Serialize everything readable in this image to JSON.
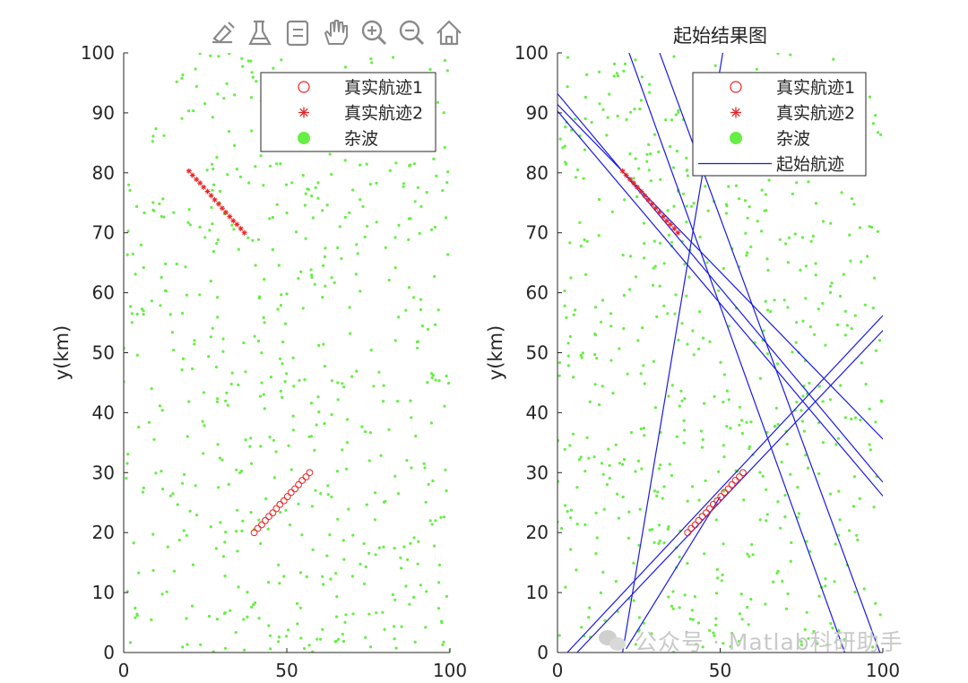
{
  "toolbar": {
    "icons": [
      "edit-arrow-icon",
      "brush-icon",
      "data-tips-icon",
      "pan-hand-icon",
      "zoom-in-icon",
      "zoom-out-icon",
      "home-icon"
    ]
  },
  "watermark": {
    "text": "公众号 · Matlab科研助手"
  },
  "colors": {
    "clutter": "#66ee44",
    "track": "#ee2222",
    "line": "#1a1ae6",
    "axes": "#262626"
  },
  "chart_data": [
    {
      "type": "scatter",
      "title": "",
      "xlabel": "",
      "ylabel": "y(km)",
      "xlim": [
        0,
        100
      ],
      "ylim": [
        0,
        100
      ],
      "xticks": [
        "0",
        "50",
        "100"
      ],
      "yticks": [
        "0",
        "10",
        "20",
        "30",
        "40",
        "50",
        "60",
        "70",
        "80",
        "90",
        "100"
      ],
      "grid": false,
      "legend_position": "top-right",
      "series": [
        {
          "name": "真实航迹1",
          "marker": "circle",
          "x": [
            40,
            41.1,
            42.3,
            43.4,
            44.5,
            45.7,
            46.8,
            47.9,
            49.1,
            50.2,
            51.3,
            52.5,
            53.6,
            54.7,
            55.9,
            57
          ],
          "y": [
            20,
            20.7,
            21.3,
            22,
            22.7,
            23.3,
            24,
            24.7,
            25.3,
            26,
            26.7,
            27.3,
            28,
            28.7,
            29.3,
            30
          ]
        },
        {
          "name": "真实航迹2",
          "marker": "star",
          "x": [
            20,
            21.1,
            22.3,
            23.4,
            24.5,
            25.7,
            26.8,
            27.9,
            29.1,
            30.2,
            31.3,
            32.5,
            33.6,
            34.7,
            35.9,
            37
          ],
          "y": [
            80.3,
            79.6,
            78.9,
            78.3,
            77.6,
            76.9,
            76.2,
            75.5,
            74.8,
            74.1,
            73.4,
            72.7,
            72,
            71.4,
            70.7,
            70
          ]
        },
        {
          "name": "杂波",
          "marker": "dot",
          "count": 600
        }
      ]
    },
    {
      "type": "scatter",
      "title": "起始结果图",
      "xlabel": "",
      "ylabel": "y(km)",
      "xlim": [
        0,
        100
      ],
      "ylim": [
        0,
        100
      ],
      "xticks": [
        "0",
        "50",
        "100"
      ],
      "yticks": [
        "0",
        "10",
        "20",
        "30",
        "40",
        "50",
        "60",
        "70",
        "80",
        "90",
        "100"
      ],
      "grid": false,
      "legend_position": "top-right",
      "series": [
        {
          "name": "真实航迹1",
          "marker": "circle",
          "x": [
            40,
            41.1,
            42.3,
            43.4,
            44.5,
            45.7,
            46.8,
            47.9,
            49.1,
            50.2,
            51.3,
            52.5,
            53.6,
            54.7,
            55.9,
            57
          ],
          "y": [
            20,
            20.7,
            21.3,
            22,
            22.7,
            23.3,
            24,
            24.7,
            25.3,
            26,
            26.7,
            27.3,
            28,
            28.7,
            29.3,
            30
          ]
        },
        {
          "name": "真实航迹2",
          "marker": "star",
          "x": [
            20,
            21.1,
            22.3,
            23.4,
            24.5,
            25.7,
            26.8,
            27.9,
            29.1,
            30.2,
            31.3,
            32.5,
            33.6,
            34.7,
            35.9,
            37
          ],
          "y": [
            80.3,
            79.6,
            78.9,
            78.3,
            77.6,
            76.9,
            76.2,
            75.5,
            74.8,
            74.1,
            73.4,
            72.7,
            72,
            71.4,
            70.7,
            70
          ]
        },
        {
          "name": "杂波",
          "marker": "dot",
          "count": 600
        },
        {
          "name": "起始航迹",
          "marker": "line",
          "segments": [
            [
              [
                0,
                93.2
              ],
              [
                100,
                28.4
              ]
            ],
            [
              [
                0,
                91.4
              ],
              [
                100,
                35.6
              ]
            ],
            [
              [
                0,
                90.3
              ],
              [
                100,
                26.1
              ]
            ],
            [
              [
                3,
                0
              ],
              [
                100,
                56.2
              ]
            ],
            [
              [
                6,
                0
              ],
              [
                100,
                53.7
              ]
            ],
            [
              [
                20,
                0
              ],
              [
                50.8,
                100
              ]
            ],
            [
              [
                22,
                100
              ],
              [
                88.3,
                0
              ]
            ],
            [
              [
                31.4,
                100
              ],
              [
                99.1,
                0
              ]
            ],
            [
              [
                21.1,
                0.6
              ],
              [
                50,
                26
              ]
            ]
          ]
        }
      ]
    }
  ]
}
